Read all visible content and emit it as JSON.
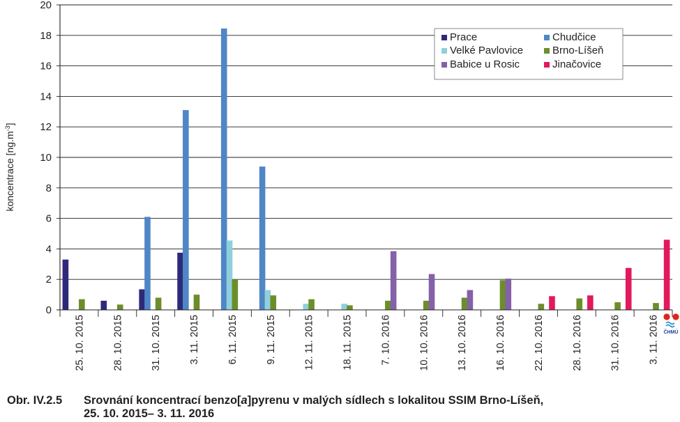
{
  "chart_data": {
    "type": "bar",
    "ylabel_main": "koncentrace [ng.m",
    "ylabel_sup": "-3",
    "ylabel_close": "]",
    "ylim": [
      0,
      20
    ],
    "yticks": [
      0,
      2,
      4,
      6,
      8,
      10,
      12,
      14,
      16,
      18,
      20
    ],
    "grid": true,
    "legend_position": "top-right",
    "categories": [
      "25. 10. 2015",
      "28. 10. 2015",
      "31. 10. 2015",
      "3. 11. 2015",
      "6. 11. 2015",
      "9. 11. 2015",
      "12. 11. 2015",
      "18. 11. 2015",
      "7. 10. 2016",
      "10. 10. 2016",
      "13. 10. 2016",
      "16. 10. 2016",
      "22. 10. 2016",
      "28. 10. 2016",
      "31. 10. 2016",
      "3. 11. 2016"
    ],
    "series": [
      {
        "name": "Prace",
        "color": "#2e2a7a",
        "values": [
          3.3,
          0.6,
          1.35,
          3.75,
          null,
          null,
          null,
          null,
          null,
          null,
          null,
          null,
          null,
          null,
          null,
          null
        ]
      },
      {
        "name": "Chudčice",
        "color": "#4f86c6",
        "values": [
          null,
          null,
          6.1,
          13.1,
          18.45,
          9.4,
          null,
          null,
          null,
          null,
          null,
          null,
          null,
          null,
          null,
          null
        ]
      },
      {
        "name": "Velké Pavlovice",
        "color": "#8fd0dc",
        "values": [
          null,
          null,
          null,
          null,
          4.55,
          1.3,
          0.4,
          0.4,
          null,
          null,
          null,
          null,
          null,
          null,
          null,
          null
        ]
      },
      {
        "name": "Brno-Líšeň",
        "color": "#6b8e2b",
        "values": [
          0.7,
          0.35,
          0.8,
          1.0,
          2.0,
          0.95,
          0.7,
          0.3,
          0.6,
          0.6,
          0.8,
          1.95,
          0.4,
          0.75,
          0.5,
          0.45
        ]
      },
      {
        "name": "Babice u Rosic",
        "color": "#8461a8",
        "values": [
          null,
          null,
          null,
          null,
          null,
          null,
          null,
          null,
          3.85,
          2.35,
          1.3,
          2.05,
          null,
          null,
          null,
          null
        ]
      },
      {
        "name": "Jinačovice",
        "color": "#e2195b",
        "values": [
          null,
          null,
          null,
          null,
          null,
          null,
          null,
          null,
          null,
          null,
          null,
          null,
          0.9,
          0.95,
          2.75,
          4.6
        ]
      }
    ]
  },
  "logo": {
    "text": "ČHMÚ",
    "colors": [
      "#e2231a",
      "#1e8fd0"
    ]
  },
  "caption": {
    "number": "Obr. IV.2.5",
    "text_before": "Srovnání koncentrací benzo[",
    "text_italic": "a",
    "text_after": "]pyrenu v malých sídlech s lokalitou SSIM Brno-Líšeň,",
    "line2": "25. 10. 2015– 3. 11. 2016"
  }
}
